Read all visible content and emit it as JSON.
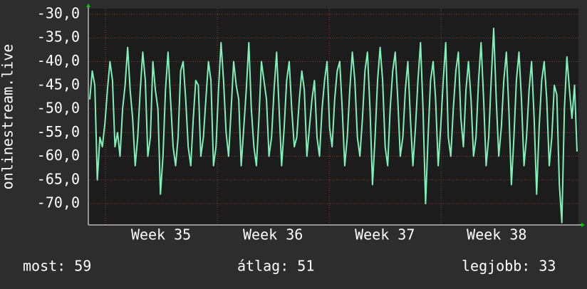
{
  "chart_data": {
    "type": "line",
    "ylabel": "onlinestream.live",
    "color": "#7ff0b8",
    "grid": true,
    "ylim": [
      -74.5,
      -28.8
    ],
    "yticks": [
      {
        "value": -30,
        "label": "-30,0"
      },
      {
        "value": -35,
        "label": "-35,0"
      },
      {
        "value": -40,
        "label": "-40,0"
      },
      {
        "value": -45,
        "label": "-45,0"
      },
      {
        "value": -50,
        "label": "-50,0"
      },
      {
        "value": -55,
        "label": "-55,0"
      },
      {
        "value": -60,
        "label": "-60,0"
      },
      {
        "value": -65,
        "label": "-65,0"
      },
      {
        "value": -70,
        "label": "-70,0"
      }
    ],
    "xlim": [
      34.35,
      38.73
    ],
    "xticks": [
      {
        "value": 35,
        "label": "Week 35"
      },
      {
        "value": 36,
        "label": "Week 36"
      },
      {
        "value": 37,
        "label": "Week 37"
      },
      {
        "value": 38,
        "label": "Week 38"
      }
    ],
    "values": [
      -48,
      -42,
      -45,
      -65,
      -56,
      -58,
      -53,
      -46,
      -40,
      -44,
      -58,
      -55,
      -60,
      -50,
      -45,
      -37,
      -46,
      -52,
      -62,
      -56,
      -46,
      -38,
      -44,
      -60,
      -56,
      -40,
      -46,
      -50,
      -68,
      -60,
      -46,
      -38,
      -48,
      -58,
      -62,
      -56,
      -42,
      -40,
      -48,
      -58,
      -62,
      -52,
      -44,
      -45,
      -60,
      -56,
      -48,
      -40,
      -44,
      -62,
      -58,
      -46,
      -36,
      -44,
      -55,
      -60,
      -50,
      -40,
      -45,
      -48,
      -62,
      -54,
      -46,
      -36,
      -50,
      -58,
      -62,
      -52,
      -40,
      -44,
      -48,
      -60,
      -56,
      -46,
      -38,
      -50,
      -62,
      -54,
      -44,
      -40,
      -50,
      -58,
      -56,
      -48,
      -42,
      -46,
      -60,
      -54,
      -48,
      -44,
      -56,
      -60,
      -50,
      -44,
      -40,
      -54,
      -58,
      -48,
      -42,
      -40,
      -50,
      -62,
      -56,
      -46,
      -38,
      -44,
      -56,
      -60,
      -52,
      -42,
      -38,
      -50,
      -66,
      -56,
      -44,
      -37,
      -44,
      -58,
      -62,
      -50,
      -42,
      -38,
      -48,
      -60,
      -56,
      -46,
      -40,
      -52,
      -62,
      -54,
      -44,
      -36,
      -50,
      -70,
      -56,
      -44,
      -40,
      -48,
      -62,
      -54,
      -44,
      -36,
      -56,
      -60,
      -50,
      -42,
      -38,
      -52,
      -58,
      -46,
      -40,
      -48,
      -60,
      -56,
      -44,
      -36,
      -48,
      -62,
      -56,
      -44,
      -33,
      -48,
      -60,
      -54,
      -44,
      -38,
      -50,
      -66,
      -56,
      -44,
      -38,
      -48,
      -62,
      -56,
      -46,
      -40,
      -52,
      -68,
      -54,
      -44,
      -40,
      -48,
      -62,
      -56,
      -45,
      -47,
      -66,
      -74,
      -50,
      -39,
      -46,
      -52,
      -45,
      -59
    ],
    "stats": [
      "most: 59",
      "átlag: 51",
      "legjobb: 33"
    ]
  }
}
